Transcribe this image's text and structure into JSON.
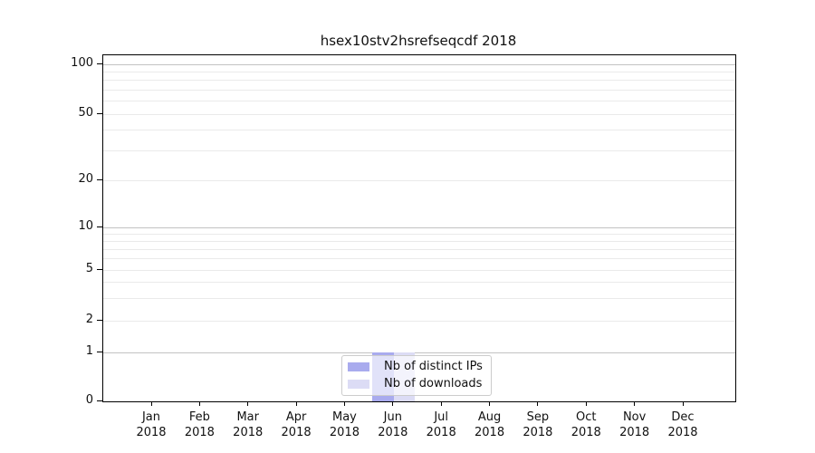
{
  "chart_data": {
    "type": "bar",
    "title": "hsex10stv2hsrefseqcdf 2018",
    "x": {
      "categories": [
        "Jan",
        "Feb",
        "Mar",
        "Apr",
        "May",
        "Jun",
        "Jul",
        "Aug",
        "Sep",
        "Oct",
        "Nov",
        "Dec"
      ],
      "year_label": "2018"
    },
    "y_axis": {
      "scale": "log-with-zero",
      "tick_values": [
        0,
        1,
        2,
        5,
        10,
        20,
        50,
        100
      ],
      "range": [
        0,
        115
      ],
      "grid": "on"
    },
    "grid": {
      "major_line_values": [
        1,
        10,
        100
      ],
      "minor_line_values": [
        2,
        3,
        4,
        5,
        6,
        7,
        8,
        9,
        20,
        30,
        40,
        50,
        60,
        70,
        80,
        90
      ]
    },
    "series": [
      {
        "name": "Nb of distinct IPs",
        "color": "#a9abee",
        "values": [
          0,
          0,
          0,
          0,
          0,
          1,
          0,
          0,
          0,
          0,
          0,
          0
        ]
      },
      {
        "name": "Nb of downloads",
        "color": "#dcdcf5",
        "values": [
          0,
          0,
          0,
          0,
          0,
          1,
          0,
          0,
          0,
          0,
          0,
          0
        ]
      }
    ],
    "legend": {
      "location": "lower-center-inside",
      "entries": [
        "Nb of distinct IPs",
        "Nb of downloads"
      ]
    },
    "colors": {
      "grid_major": "#c2c2c2",
      "grid_minor": "#eaeaea",
      "spine": "#000000",
      "text": "#111111",
      "legend_border": "#cccccc"
    }
  }
}
